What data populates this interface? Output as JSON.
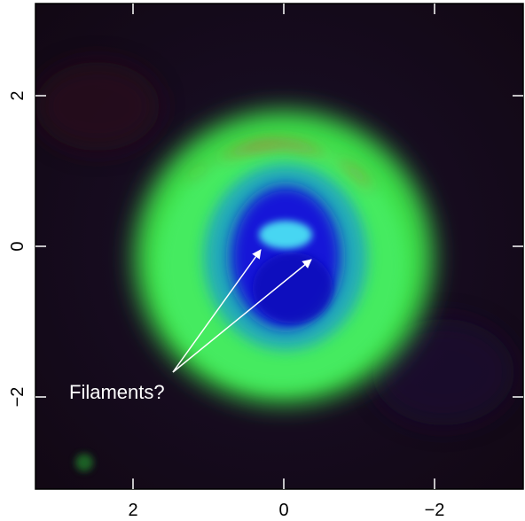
{
  "image": {
    "colors": {
      "background": "#160a1c",
      "outer_ring": "#3ee04a",
      "inner_hole": "#1618d8",
      "arc_top": "#e2401e",
      "filament_glow": "#47d6f2",
      "frame": "#000000",
      "annotation": "#ffffff"
    }
  },
  "axes": {
    "x_ticks": [
      {
        "value": 2,
        "label": "2"
      },
      {
        "value": 0,
        "label": "0"
      },
      {
        "value": -2,
        "label": "−2"
      }
    ],
    "y_ticks": [
      {
        "value": 2,
        "label": "2"
      },
      {
        "value": 0,
        "label": "0"
      },
      {
        "value": -2,
        "label": "−2"
      }
    ],
    "x_range": [
      3.3,
      -3.3
    ],
    "y_range": [
      -3.4,
      3.3
    ]
  },
  "annotation": {
    "text": "Filaments?"
  }
}
